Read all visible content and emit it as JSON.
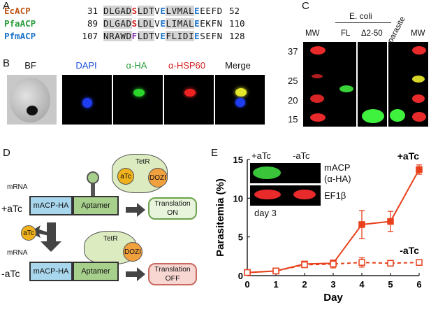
{
  "panelA": {
    "label": "A",
    "rows": [
      {
        "name": "EcACP",
        "color": "#c0561b",
        "start": "31",
        "seq": [
          [
            "DLGAD",
            "hl",
            ""
          ],
          [
            "S",
            "",
            "red"
          ],
          [
            "LDT",
            "hl",
            ""
          ],
          [
            "V",
            "",
            ""
          ],
          [
            "E",
            "",
            "blue"
          ],
          [
            "LVMAL",
            "hl",
            ""
          ],
          [
            "E",
            "",
            "blue"
          ],
          [
            "EEFD",
            "",
            ""
          ]
        ],
        "end": "52"
      },
      {
        "name": "PfaACP",
        "color": "#2a9d3b",
        "start": "89",
        "seq": [
          [
            "DLGAD",
            "hl",
            ""
          ],
          [
            "S",
            "",
            "red"
          ],
          [
            "LDL",
            "hl",
            ""
          ],
          [
            "V",
            "",
            ""
          ],
          [
            "E",
            "",
            "blue"
          ],
          [
            "LIMAL",
            "hl",
            ""
          ],
          [
            "E",
            "",
            "blue"
          ],
          [
            "EKFN",
            "",
            ""
          ]
        ],
        "end": "110"
      },
      {
        "name": "PfmACP",
        "color": "#1a73c9",
        "start": "107",
        "seq": [
          [
            "NRAWD",
            "hl",
            ""
          ],
          [
            "F",
            "",
            "purple"
          ],
          [
            "LDT",
            "hl",
            ""
          ],
          [
            "V",
            "",
            ""
          ],
          [
            "E",
            "",
            "blue"
          ],
          [
            "FLIDI",
            "hl",
            ""
          ],
          [
            "E",
            "",
            "blue"
          ],
          [
            "SEFN",
            "",
            ""
          ]
        ],
        "end": "128"
      }
    ]
  },
  "panelB": {
    "label": "B",
    "channels": [
      {
        "name": "BF",
        "color": "#111111"
      },
      {
        "name": "DAPI",
        "color": "#1a4fd6"
      },
      {
        "name": "α-HA",
        "color": "#2a9d3b"
      },
      {
        "name": "α-HSP60",
        "color": "#d42020"
      },
      {
        "name": "Merge",
        "color": "#111111"
      }
    ]
  },
  "panelC": {
    "label": "C",
    "group_label": "E. coli",
    "lane_labels": [
      "MW",
      "FL",
      "Δ2-50",
      "parasite",
      "MW"
    ],
    "mw_markers": [
      "37",
      "25",
      "20",
      "15"
    ]
  },
  "panelD": {
    "label": "D",
    "plus_label": "+aTc",
    "minus_label": "-aTc",
    "mrna": "mRNA",
    "gene": "mACP-HA",
    "aptamer": "Aptamer",
    "tetr": "TetR",
    "dozi": "DOZI",
    "atc": "aTc",
    "translation_on": [
      "Translation",
      "ON"
    ],
    "translation_off": [
      "Translation",
      "OFF"
    ]
  },
  "panelE": {
    "label": "E",
    "inset": {
      "plus": "+aTc",
      "minus": "-aTc",
      "row1": "mACP",
      "row1b": "(α-HA)",
      "row2": "EF1β",
      "day": "day 3"
    }
  },
  "chart_data": {
    "type": "line",
    "xlabel": "Day",
    "ylabel": "Parasitemia (%)",
    "xlim": [
      0,
      6
    ],
    "ylim": [
      0,
      15
    ],
    "xticks": [
      "0",
      "1",
      "2",
      "3",
      "4",
      "5",
      "6"
    ],
    "yticks": [
      "0",
      "5",
      "10",
      "15"
    ],
    "grid": false,
    "color": "#e8401c",
    "series": [
      {
        "name": "+aTc",
        "style": "solid",
        "marker": "filled-square",
        "x": [
          0,
          1,
          2,
          3,
          4,
          5,
          6
        ],
        "y": [
          0.4,
          0.6,
          1.5,
          1.6,
          6.6,
          7.0,
          13.7
        ],
        "err": [
          0.1,
          0.15,
          0.3,
          0.4,
          1.8,
          1.3,
          0.6
        ]
      },
      {
        "name": "-aTc",
        "style": "dashed",
        "marker": "open-square",
        "x": [
          0,
          1,
          2,
          3,
          4,
          5,
          6
        ],
        "y": [
          0.4,
          0.6,
          1.4,
          1.5,
          1.7,
          1.6,
          1.7
        ],
        "err": [
          0.1,
          0.1,
          0.3,
          0.5,
          0.6,
          0.3,
          0.2
        ]
      }
    ]
  }
}
